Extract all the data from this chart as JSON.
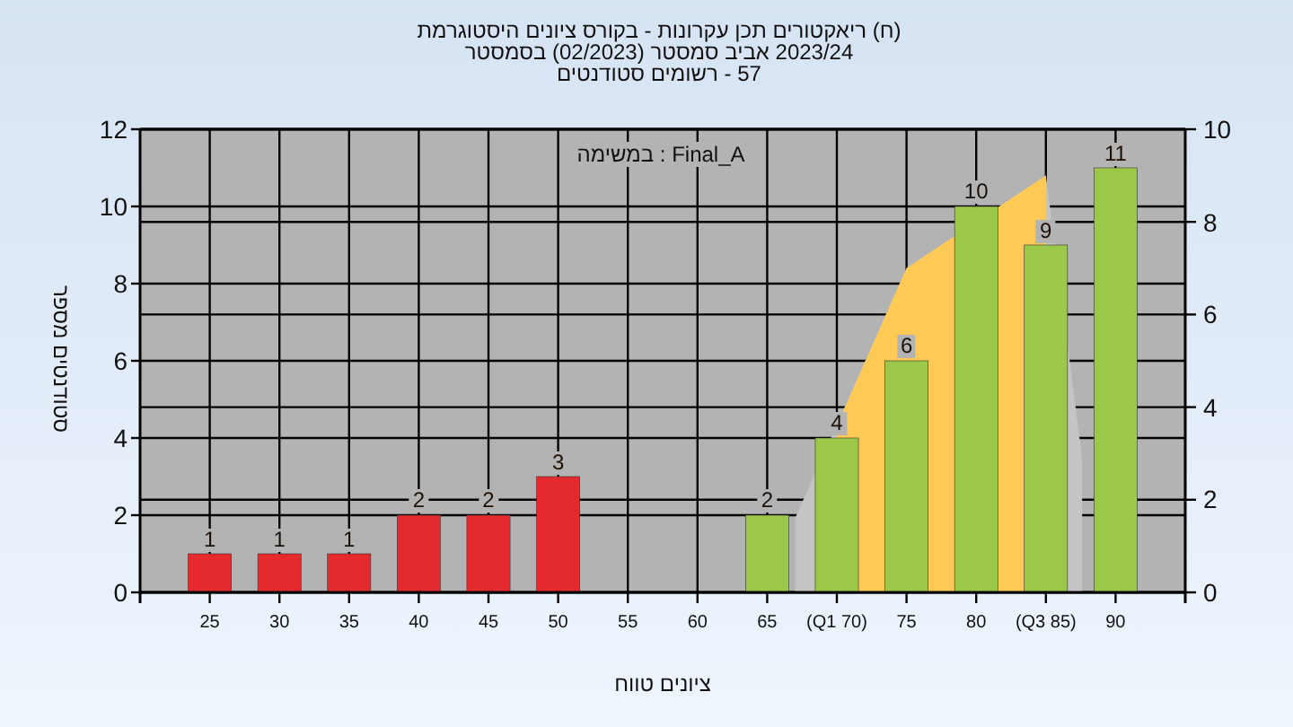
{
  "chart_data": {
    "type": "bar",
    "title": "היסטוגרמת ציונים בקורס - עקרונות תכן ריאקטורים (ח)",
    "subtitle": "בסמסטר (02/2023) סמסטר אביב 2023/24\nסטודנטים רשומים - 57",
    "xlabel": "טווח ציונים",
    "ylabel": "מספר סטודנטים",
    "annotations": [
      "במשימה : Final_A"
    ],
    "xlim": [
      20,
      95
    ],
    "xticks": [
      25,
      30,
      35,
      40,
      45,
      50,
      55,
      60,
      65,
      {
        "value": 70,
        "label": "(Q1 70)"
      },
      75,
      80,
      {
        "value": 85,
        "label": "(Q3 85)"
      },
      90
    ],
    "ylim": [
      0,
      12
    ],
    "yticks": [
      0,
      2,
      4,
      6,
      8,
      10,
      12
    ],
    "y2lim": [
      0,
      10
    ],
    "y2ticks": [
      0,
      2,
      4,
      6,
      8,
      10
    ],
    "grid": true,
    "series": [
      {
        "type": "area",
        "axis": "y2",
        "color": "#c4c4c4",
        "x": [
          67,
          75,
          85,
          87.6
        ],
        "values": [
          1.6,
          7,
          9,
          2.9
        ]
      },
      {
        "type": "area",
        "axis": "y2",
        "color": "#ffc955",
        "x": [
          70,
          75,
          85
        ],
        "values": [
          3.6,
          7,
          9
        ]
      },
      {
        "x": [
          25,
          30,
          35,
          40,
          45,
          50,
          65,
          70,
          75,
          80,
          85,
          90
        ],
        "values": [
          1,
          1,
          1,
          2,
          2,
          3,
          2,
          4,
          6,
          10,
          9,
          11
        ],
        "value_labels": [
          "1",
          "1",
          "1",
          "2",
          "2",
          "3",
          "2",
          "4",
          "6",
          "10",
          "9",
          "11"
        ],
        "colors": [
          "#e52a2e",
          "#e52a2e",
          "#e52a2e",
          "#e52a2e",
          "#e52a2e",
          "#e52a2e",
          "#9cc84a",
          "#9cc84a",
          "#9cc84a",
          "#9cc84a",
          "#9cc84a",
          "#9cc84a"
        ]
      }
    ]
  }
}
